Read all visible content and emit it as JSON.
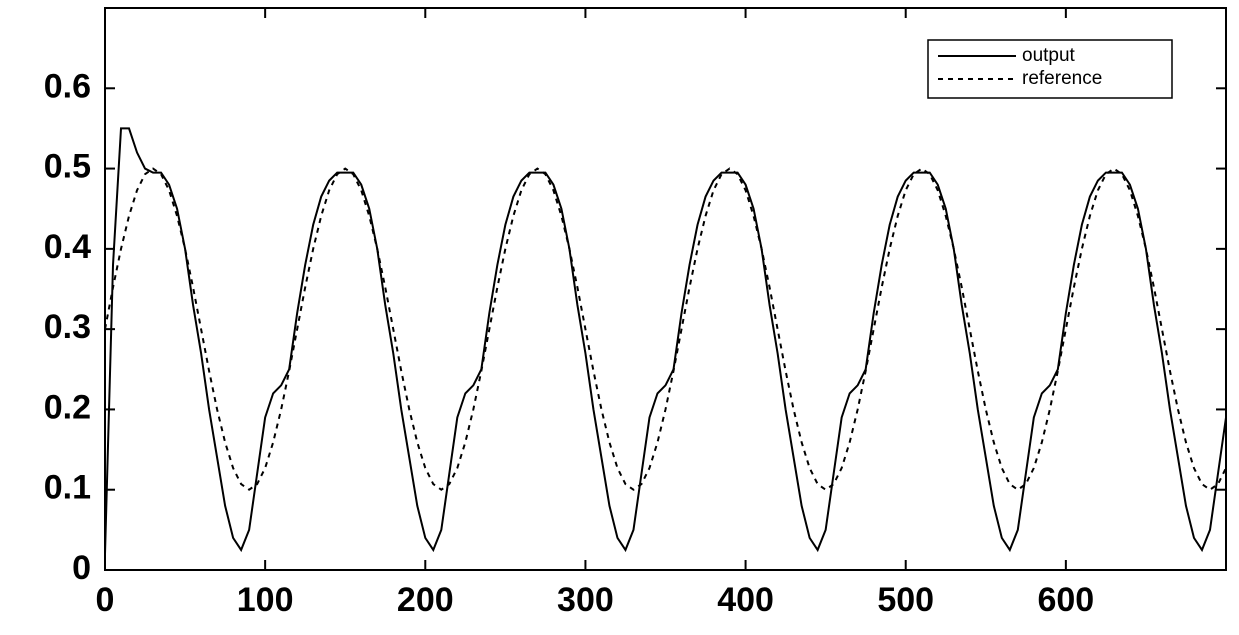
{
  "chart_data": {
    "type": "line",
    "x": [
      0,
      5,
      10,
      15,
      20,
      25,
      30,
      35,
      40,
      45,
      50,
      55,
      60,
      65,
      70,
      75,
      80,
      85,
      90,
      95,
      100,
      105,
      110,
      115,
      120,
      125,
      130,
      135,
      140,
      145,
      150,
      155,
      160,
      165,
      170,
      175,
      180,
      185,
      190,
      195,
      200,
      205,
      210,
      215,
      220,
      225,
      230,
      235,
      240,
      245,
      250,
      255,
      260,
      265,
      270,
      275,
      280,
      285,
      290,
      295,
      300,
      305,
      310,
      315,
      320,
      325,
      330,
      335,
      340,
      345,
      350,
      355,
      360,
      365,
      370,
      375,
      380,
      385,
      390,
      395,
      400,
      405,
      410,
      415,
      420,
      425,
      430,
      435,
      440,
      445,
      450,
      455,
      460,
      465,
      470,
      475,
      480,
      485,
      490,
      495,
      500,
      505,
      510,
      515,
      520,
      525,
      530,
      535,
      540,
      545,
      550,
      555,
      560,
      565,
      570,
      575,
      580,
      585,
      590,
      595,
      600,
      605,
      610,
      615,
      620,
      625,
      630,
      635,
      640,
      645,
      650,
      655,
      660,
      665,
      670,
      675,
      680,
      685,
      690,
      695,
      700
    ],
    "series": [
      {
        "name": "output",
        "color": "#000000",
        "line_style": "solid",
        "values": [
          0.02,
          0.38,
          0.55,
          0.55,
          0.52,
          0.5,
          0.495,
          0.495,
          0.48,
          0.45,
          0.4,
          0.33,
          0.27,
          0.2,
          0.14,
          0.08,
          0.04,
          0.025,
          0.05,
          0.12,
          0.19,
          0.22,
          0.23,
          0.25,
          0.32,
          0.38,
          0.43,
          0.465,
          0.485,
          0.495,
          0.495,
          0.495,
          0.48,
          0.45,
          0.4,
          0.33,
          0.27,
          0.2,
          0.14,
          0.08,
          0.04,
          0.025,
          0.05,
          0.12,
          0.19,
          0.22,
          0.23,
          0.25,
          0.32,
          0.38,
          0.43,
          0.465,
          0.485,
          0.495,
          0.495,
          0.495,
          0.48,
          0.45,
          0.4,
          0.33,
          0.27,
          0.2,
          0.14,
          0.08,
          0.04,
          0.025,
          0.05,
          0.12,
          0.19,
          0.22,
          0.23,
          0.25,
          0.32,
          0.38,
          0.43,
          0.465,
          0.485,
          0.495,
          0.495,
          0.495,
          0.48,
          0.45,
          0.4,
          0.33,
          0.27,
          0.2,
          0.14,
          0.08,
          0.04,
          0.025,
          0.05,
          0.12,
          0.19,
          0.22,
          0.23,
          0.25,
          0.32,
          0.38,
          0.43,
          0.465,
          0.485,
          0.495,
          0.495,
          0.495,
          0.48,
          0.45,
          0.4,
          0.33,
          0.27,
          0.2,
          0.14,
          0.08,
          0.04,
          0.025,
          0.05,
          0.12,
          0.19,
          0.22,
          0.23,
          0.25,
          0.32,
          0.38,
          0.43,
          0.465,
          0.485,
          0.495,
          0.495,
          0.495,
          0.48,
          0.45,
          0.4,
          0.33,
          0.27,
          0.2,
          0.14,
          0.08,
          0.04,
          0.025,
          0.05,
          0.12,
          0.19
        ]
      },
      {
        "name": "reference",
        "color": "#000000",
        "line_style": "dashed",
        "values": [
          0.3,
          0.352,
          0.4,
          0.441,
          0.473,
          0.493,
          0.5,
          0.493,
          0.473,
          0.441,
          0.4,
          0.352,
          0.3,
          0.248,
          0.2,
          0.159,
          0.127,
          0.107,
          0.1,
          0.107,
          0.127,
          0.159,
          0.2,
          0.248,
          0.3,
          0.352,
          0.4,
          0.441,
          0.473,
          0.493,
          0.5,
          0.493,
          0.473,
          0.441,
          0.4,
          0.352,
          0.3,
          0.248,
          0.2,
          0.159,
          0.127,
          0.107,
          0.1,
          0.107,
          0.127,
          0.159,
          0.2,
          0.248,
          0.3,
          0.352,
          0.4,
          0.441,
          0.473,
          0.493,
          0.5,
          0.493,
          0.473,
          0.441,
          0.4,
          0.352,
          0.3,
          0.248,
          0.2,
          0.159,
          0.127,
          0.107,
          0.1,
          0.107,
          0.127,
          0.159,
          0.2,
          0.248,
          0.3,
          0.352,
          0.4,
          0.441,
          0.473,
          0.493,
          0.5,
          0.493,
          0.473,
          0.441,
          0.4,
          0.352,
          0.3,
          0.248,
          0.2,
          0.159,
          0.127,
          0.107,
          0.1,
          0.107,
          0.127,
          0.159,
          0.2,
          0.248,
          0.3,
          0.352,
          0.4,
          0.441,
          0.473,
          0.493,
          0.5,
          0.493,
          0.473,
          0.441,
          0.4,
          0.352,
          0.3,
          0.248,
          0.2,
          0.159,
          0.127,
          0.107,
          0.1,
          0.107,
          0.127,
          0.159,
          0.2,
          0.248,
          0.3,
          0.352,
          0.4,
          0.441,
          0.473,
          0.493,
          0.5,
          0.493,
          0.473,
          0.441,
          0.4,
          0.352,
          0.3,
          0.248,
          0.2,
          0.159,
          0.127,
          0.107,
          0.1,
          0.107,
          0.127
        ]
      }
    ],
    "xlim": [
      0,
      700
    ],
    "xticks": [
      0,
      100,
      200,
      300,
      400,
      500,
      600
    ],
    "ylim": [
      0,
      0.7
    ],
    "yticks": [
      0,
      0.1,
      0.2,
      0.3,
      0.4,
      0.5,
      0.6
    ],
    "grid": false,
    "legend": "upper right"
  }
}
